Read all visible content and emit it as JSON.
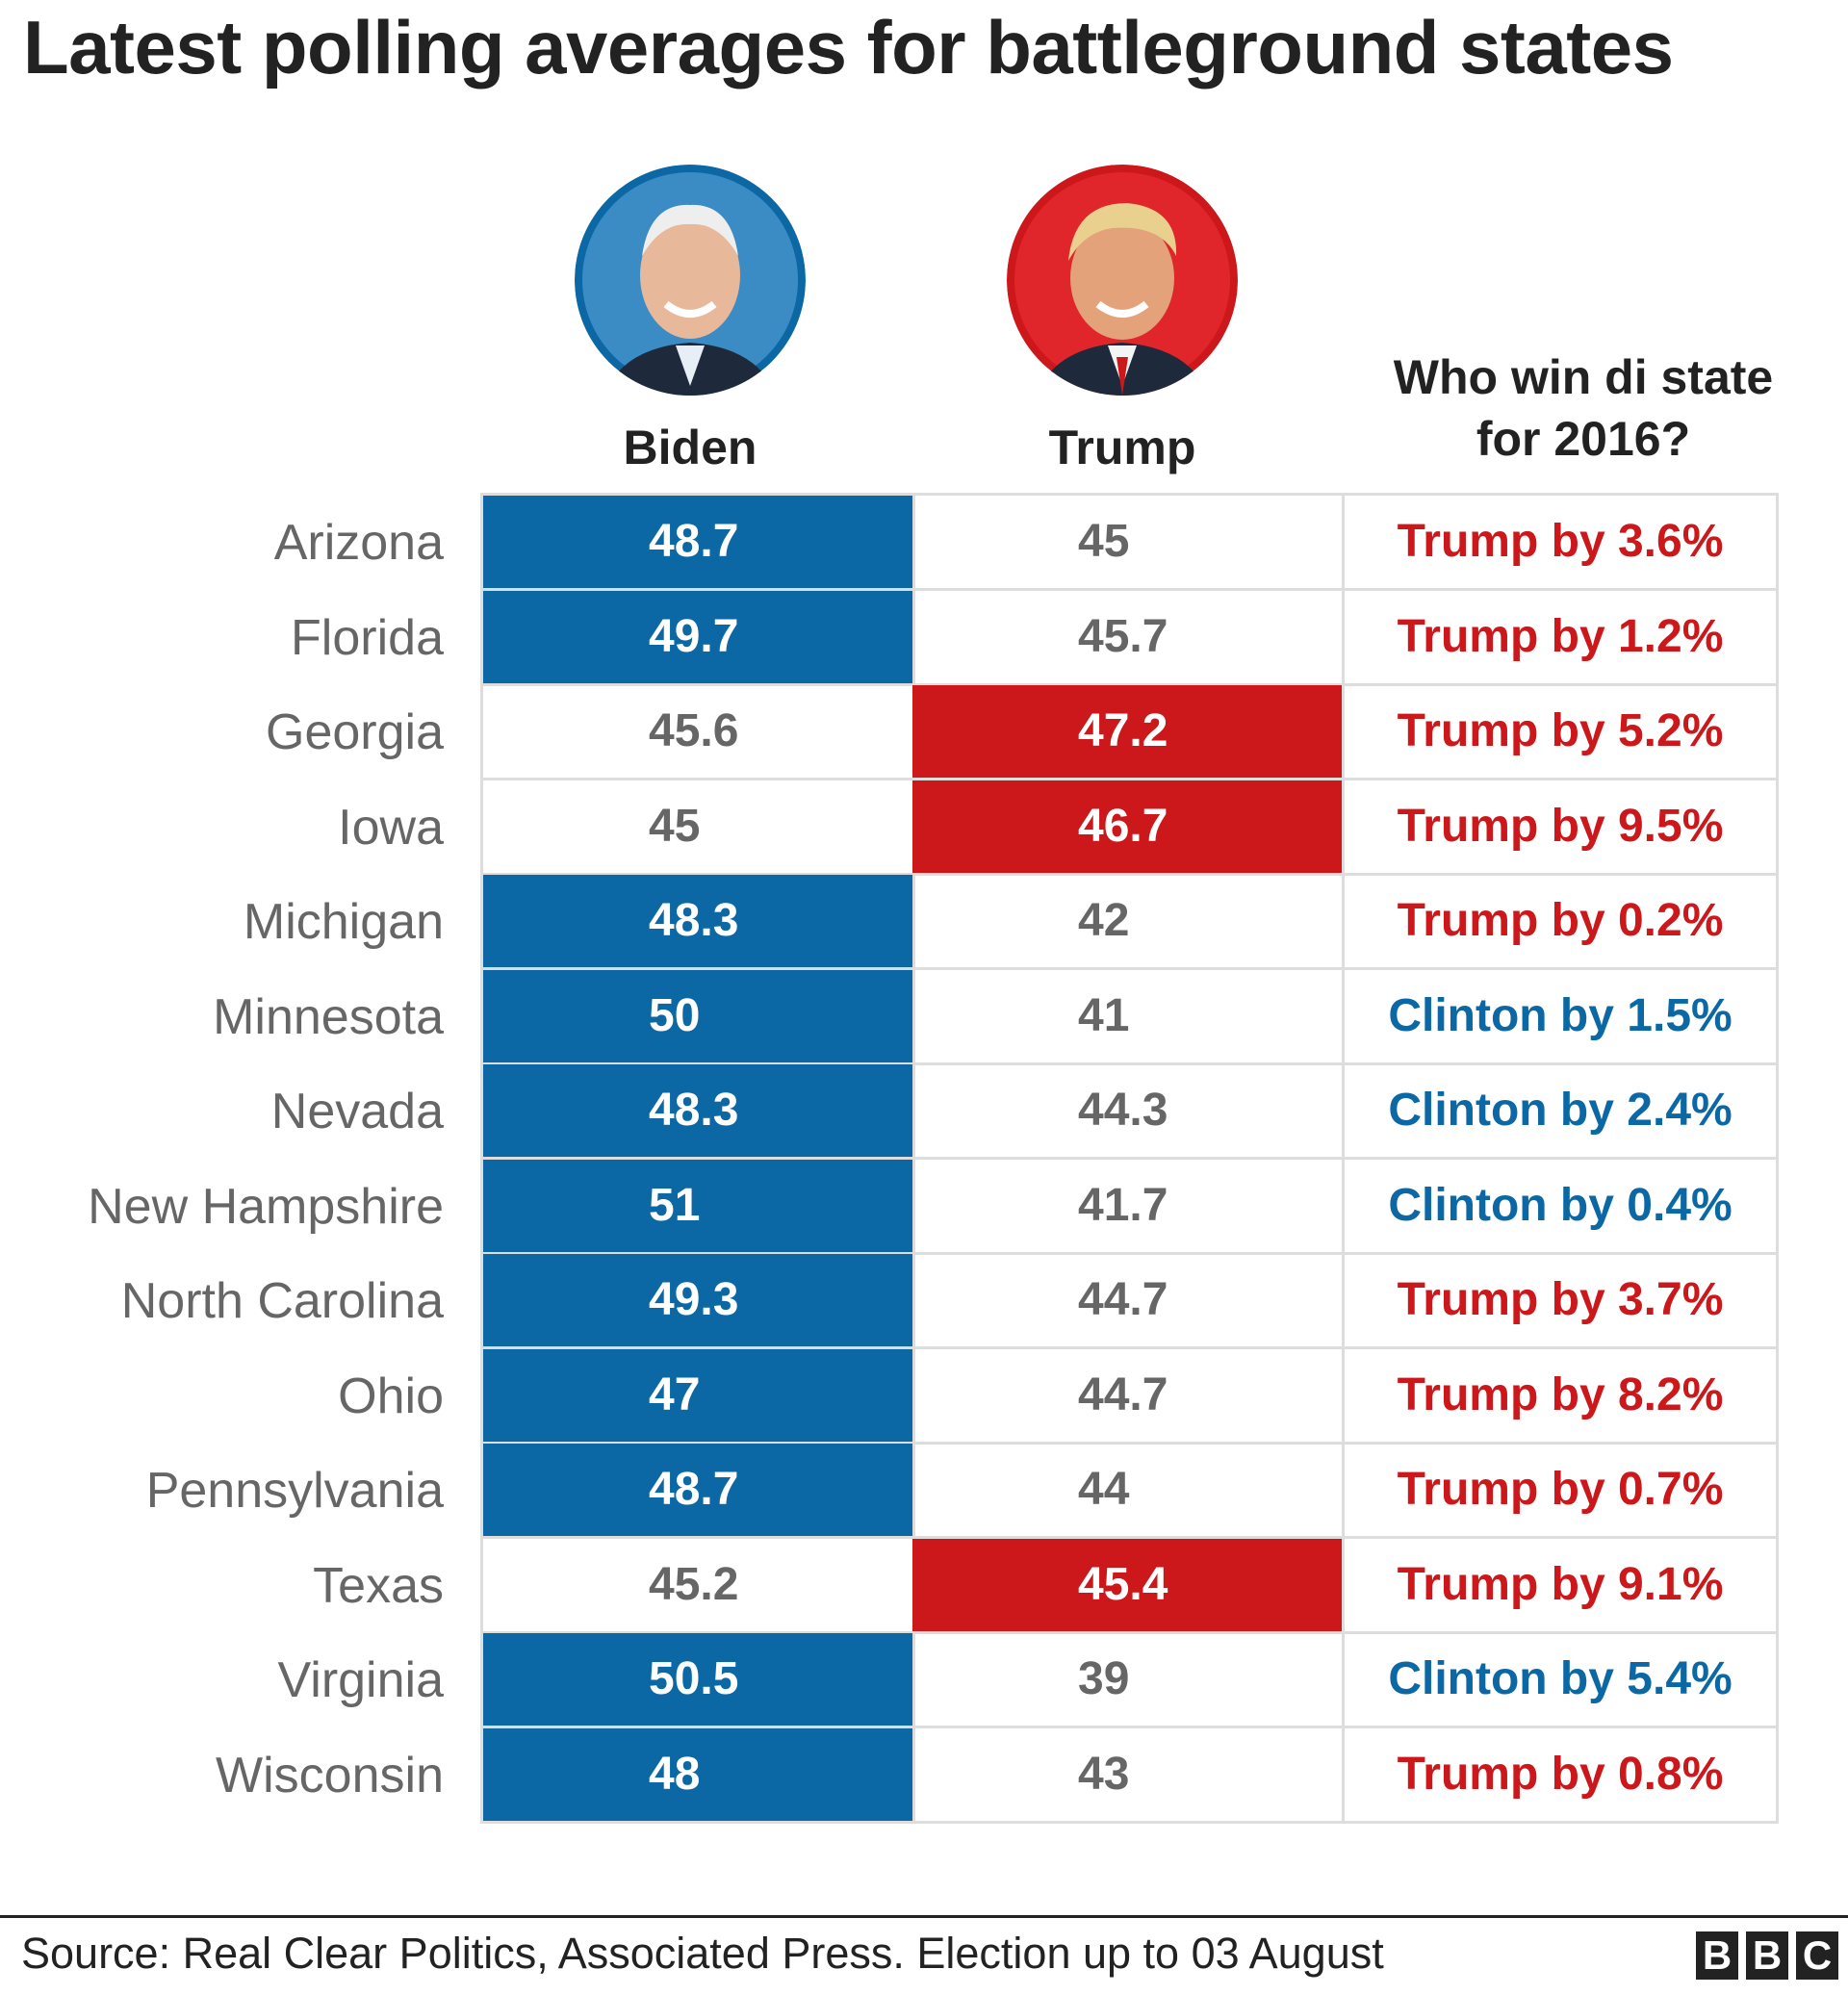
{
  "title": "Latest polling averages for battleground states",
  "candidates": {
    "biden": {
      "name": "Biden",
      "color": "#0b68a4"
    },
    "trump": {
      "name": "Trump",
      "color": "#cc171b"
    }
  },
  "who_header": {
    "line1": "Who win di state",
    "line2": "for 2016?"
  },
  "chart_data": {
    "type": "table",
    "title": "Latest polling averages for battleground states",
    "columns": [
      "Biden",
      "Trump",
      "Who win di state for 2016?"
    ],
    "rows": [
      {
        "state": "Arizona",
        "biden": "48.7",
        "trump": "45",
        "leader": "biden",
        "result_2016": "Trump by 3.6%",
        "winner_2016": "trump"
      },
      {
        "state": "Florida",
        "biden": "49.7",
        "trump": "45.7",
        "leader": "biden",
        "result_2016": "Trump by 1.2%",
        "winner_2016": "trump"
      },
      {
        "state": "Georgia",
        "biden": "45.6",
        "trump": "47.2",
        "leader": "trump",
        "result_2016": "Trump by 5.2%",
        "winner_2016": "trump"
      },
      {
        "state": "Iowa",
        "biden": "45",
        "trump": "46.7",
        "leader": "trump",
        "result_2016": "Trump by 9.5%",
        "winner_2016": "trump"
      },
      {
        "state": "Michigan",
        "biden": "48.3",
        "trump": "42",
        "leader": "biden",
        "result_2016": "Trump by 0.2%",
        "winner_2016": "trump"
      },
      {
        "state": "Minnesota",
        "biden": "50",
        "trump": "41",
        "leader": "biden",
        "result_2016": "Clinton by 1.5%",
        "winner_2016": "clinton"
      },
      {
        "state": "Nevada",
        "biden": "48.3",
        "trump": "44.3",
        "leader": "biden",
        "result_2016": "Clinton by 2.4%",
        "winner_2016": "clinton"
      },
      {
        "state": "New Hampshire",
        "biden": "51",
        "trump": "41.7",
        "leader": "biden",
        "result_2016": "Clinton by 0.4%",
        "winner_2016": "clinton"
      },
      {
        "state": "North Carolina",
        "biden": "49.3",
        "trump": "44.7",
        "leader": "biden",
        "result_2016": "Trump by 3.7%",
        "winner_2016": "trump"
      },
      {
        "state": "Ohio",
        "biden": "47",
        "trump": "44.7",
        "leader": "biden",
        "result_2016": "Trump by 8.2%",
        "winner_2016": "trump"
      },
      {
        "state": "Pennsylvania",
        "biden": "48.7",
        "trump": "44",
        "leader": "biden",
        "result_2016": "Trump by 0.7%",
        "winner_2016": "trump"
      },
      {
        "state": "Texas",
        "biden": "45.2",
        "trump": "45.4",
        "leader": "trump",
        "result_2016": "Trump by 9.1%",
        "winner_2016": "trump"
      },
      {
        "state": "Virginia",
        "biden": "50.5",
        "trump": "39",
        "leader": "biden",
        "result_2016": "Clinton by 5.4%",
        "winner_2016": "clinton"
      },
      {
        "state": "Wisconsin",
        "biden": "48",
        "trump": "43",
        "leader": "biden",
        "result_2016": "Trump by 0.8%",
        "winner_2016": "trump"
      }
    ]
  },
  "footer": {
    "source": "Source: Real Clear Politics, Associated Press. Election up to 03 August",
    "logo": "BBC"
  }
}
